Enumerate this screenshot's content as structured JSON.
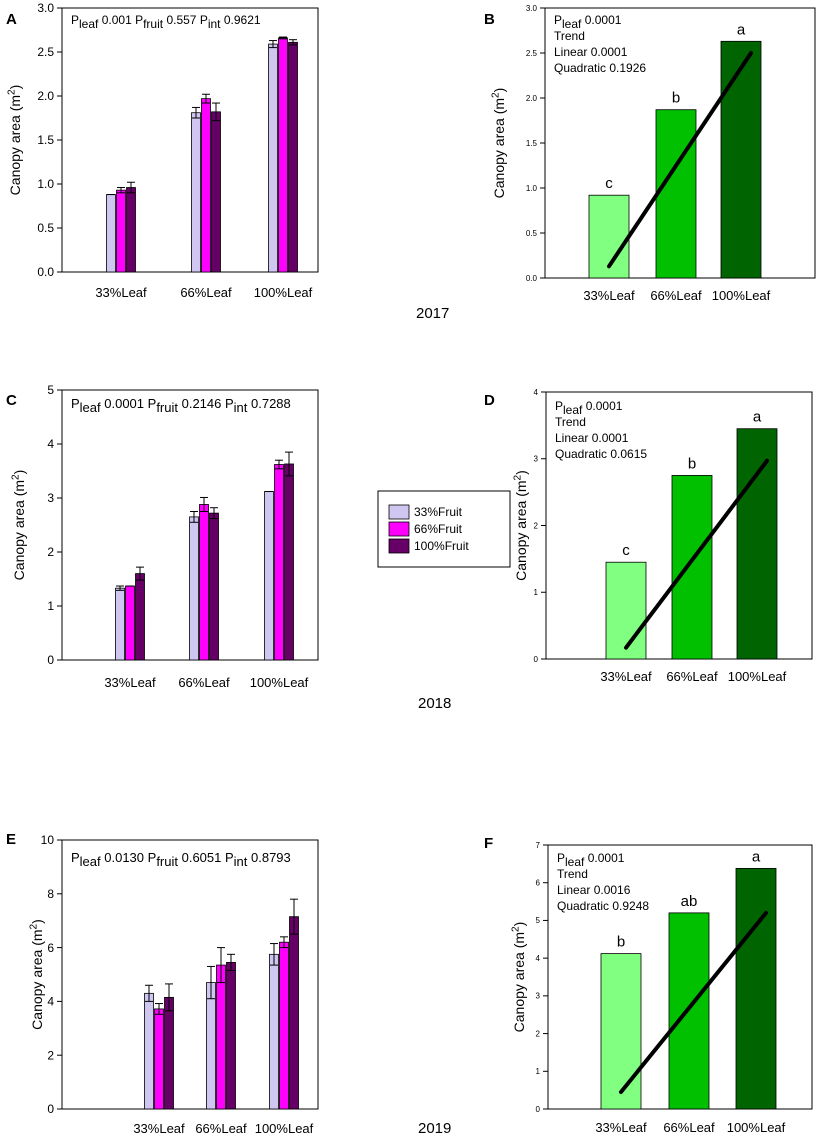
{
  "colors": {
    "fruit33": "#d0c6f2",
    "fruit66": "#ff00ff",
    "fruit100": "#660066",
    "leaf33": "#80ff80",
    "leaf66": "#00c000",
    "leaf100": "#006400",
    "trend": "#000000"
  },
  "years": {
    "y2017": "2017",
    "y2018": "2018",
    "y2019": "2019"
  },
  "legend": {
    "entries": [
      "33%Fruit",
      "66%Fruit",
      "100%Fruit"
    ]
  },
  "chart_data": [
    {
      "id": "A",
      "letter": "A",
      "type": "bar",
      "year": "2017",
      "ylabel": "Canopy area (m2)",
      "ylim": [
        0,
        3
      ],
      "yticks": [
        0,
        0.5,
        1,
        1.5,
        2,
        2.5,
        3
      ],
      "ytick_labels": [
        "0.0",
        "0.5",
        "1.0",
        "1.5",
        "2.0",
        "2.5",
        "3.0"
      ],
      "categories": [
        "33%Leaf",
        "66%Leaf",
        "100%Leaf"
      ],
      "series": [
        {
          "name": "33%Fruit",
          "values": [
            0.88,
            1.81,
            2.59
          ],
          "errors": [
            0.0,
            0.06,
            0.04
          ]
        },
        {
          "name": "66%Fruit",
          "values": [
            0.93,
            1.97,
            2.66
          ],
          "errors": [
            0.03,
            0.05,
            0.01
          ]
        },
        {
          "name": "100%Fruit",
          "values": [
            0.96,
            1.82,
            2.61
          ],
          "errors": [
            0.06,
            0.1,
            0.03
          ]
        }
      ],
      "annotation": [
        "P",
        "leaf",
        " 0.001 ",
        "P",
        "fruit",
        " 0.557 ",
        "P",
        "int",
        " 0.9621"
      ]
    },
    {
      "id": "B",
      "letter": "B",
      "type": "bar",
      "year": "2017",
      "ylabel": "Canopy area (m2)",
      "ylim": [
        0,
        3
      ],
      "yticks": [
        0,
        0.5,
        1,
        1.5,
        2,
        2.5,
        3
      ],
      "ytick_labels": [
        "0.0",
        "0.5",
        "1.0",
        "1.5",
        "2.0",
        "2.5",
        "3.0"
      ],
      "categories": [
        "33%Leaf",
        "66%Leaf",
        "100%Leaf"
      ],
      "values": [
        0.92,
        1.87,
        2.63
      ],
      "letters": [
        "c",
        "b",
        "a"
      ],
      "trend": {
        "start": 0.13,
        "end": 2.5
      },
      "annotation": [
        "P",
        "leaf",
        " 0.0001"
      ],
      "notes": [
        "Trend",
        "Linear 0.0001",
        "Quadratic 0.1926"
      ]
    },
    {
      "id": "C",
      "letter": "C",
      "type": "bar",
      "year": "2018",
      "ylabel": "Canopy area (m2)",
      "ylim": [
        0,
        5
      ],
      "yticks": [
        0,
        1,
        2,
        3,
        4,
        5
      ],
      "ytick_labels": [
        "0",
        "1",
        "2",
        "3",
        "4",
        "5"
      ],
      "categories": [
        "33%Leaf",
        "66%Leaf",
        "100%Leaf"
      ],
      "series": [
        {
          "name": "33%Fruit",
          "values": [
            1.33,
            2.65,
            3.12
          ],
          "errors": [
            0.04,
            0.1,
            0.0
          ]
        },
        {
          "name": "66%Fruit",
          "values": [
            1.37,
            2.88,
            3.62
          ],
          "errors": [
            0.0,
            0.13,
            0.08
          ]
        },
        {
          "name": "100%Fruit",
          "values": [
            1.6,
            2.72,
            3.63
          ],
          "errors": [
            0.12,
            0.1,
            0.22
          ]
        }
      ],
      "annotation": [
        "P",
        "leaf",
        " 0.0001 ",
        "P",
        "fruit",
        " 0.2146 ",
        "P",
        "int",
        " 0.7288"
      ]
    },
    {
      "id": "D",
      "letter": "D",
      "type": "bar",
      "year": "2018",
      "ylabel": "Canopy area (m2)",
      "ylim": [
        0,
        4
      ],
      "yticks": [
        0,
        1,
        2,
        3,
        4
      ],
      "ytick_labels": [
        "0",
        "1",
        "2",
        "3",
        "4"
      ],
      "categories": [
        "33%Leaf",
        "66%Leaf",
        "100%Leaf"
      ],
      "values": [
        1.45,
        2.75,
        3.45
      ],
      "letters": [
        "c",
        "b",
        "a"
      ],
      "trend": {
        "start": 0.17,
        "end": 2.97
      },
      "annotation": [
        "P",
        "leaf",
        " 0.0001"
      ],
      "notes": [
        "Trend",
        "Linear 0.0001",
        "Quadratic 0.0615"
      ]
    },
    {
      "id": "E",
      "letter": "E",
      "type": "bar",
      "year": "2019",
      "ylabel": "Canopy area (m2)",
      "ylim": [
        0,
        10
      ],
      "yticks": [
        0,
        2,
        4,
        6,
        8,
        10
      ],
      "ytick_labels": [
        "0",
        "2",
        "4",
        "6",
        "8",
        "10"
      ],
      "categories": [
        "33%Leaf",
        "66%Leaf",
        "100%Leaf"
      ],
      "series": [
        {
          "name": "33%Fruit",
          "values": [
            4.3,
            4.7,
            5.75
          ],
          "errors": [
            0.3,
            0.6,
            0.4
          ]
        },
        {
          "name": "66%Fruit",
          "values": [
            3.72,
            5.35,
            6.2
          ],
          "errors": [
            0.2,
            0.65,
            0.2
          ]
        },
        {
          "name": "100%Fruit",
          "values": [
            4.15,
            5.45,
            7.15
          ],
          "errors": [
            0.5,
            0.3,
            0.65
          ]
        }
      ],
      "annotation": [
        "P",
        "leaf",
        " 0.0130 ",
        "P",
        "fruit",
        " 0.6051 ",
        "P",
        "int",
        " 0.8793"
      ]
    },
    {
      "id": "F",
      "letter": "F",
      "type": "bar",
      "year": "2019",
      "ylabel": "Canopy area (m2)",
      "ylim": [
        0,
        7
      ],
      "yticks": [
        0,
        1,
        2,
        3,
        4,
        5,
        6,
        7
      ],
      "ytick_labels": [
        "0",
        "1",
        "2",
        "3",
        "4",
        "5",
        "6",
        "7"
      ],
      "categories": [
        "33%Leaf",
        "66%Leaf",
        "100%Leaf"
      ],
      "values": [
        4.12,
        5.2,
        6.38
      ],
      "letters": [
        "b",
        "ab",
        "a"
      ],
      "trend": {
        "start": 0.45,
        "end": 5.2
      },
      "annotation": [
        "P",
        "leaf",
        " 0.0001"
      ],
      "notes": [
        "Trend",
        "Linear 0.0016",
        "Quadratic 0.9248"
      ]
    }
  ]
}
